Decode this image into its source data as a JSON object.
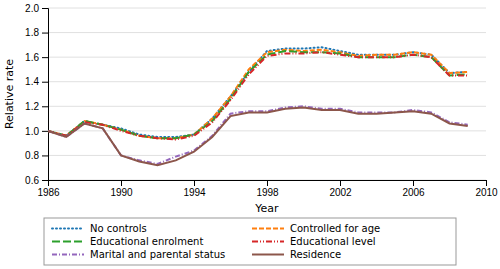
{
  "chart_data": {
    "type": "line",
    "x": [
      1986,
      1987,
      1988,
      1989,
      1990,
      1991,
      1992,
      1993,
      1994,
      1995,
      1996,
      1997,
      1998,
      1999,
      2000,
      2001,
      2002,
      2003,
      2004,
      2005,
      2006,
      2007,
      2008,
      2009
    ],
    "series": [
      {
        "name": "No controls",
        "line_style": "dotted",
        "values": [
          1.0,
          0.96,
          1.08,
          1.05,
          1.02,
          0.97,
          0.95,
          0.95,
          0.97,
          1.1,
          1.28,
          1.48,
          1.65,
          1.67,
          1.67,
          1.68,
          1.65,
          1.62,
          1.62,
          1.62,
          1.64,
          1.62,
          1.47,
          1.48
        ]
      },
      {
        "name": "Controlled for age",
        "line_style": "dashed",
        "values": [
          1.0,
          0.96,
          1.08,
          1.05,
          1.01,
          0.96,
          0.94,
          0.94,
          0.97,
          1.1,
          1.28,
          1.5,
          1.64,
          1.66,
          1.65,
          1.66,
          1.64,
          1.61,
          1.62,
          1.62,
          1.64,
          1.62,
          1.47,
          1.48
        ]
      },
      {
        "name": "Educational enrolment",
        "line_style": "longdashed",
        "values": [
          1.0,
          0.96,
          1.08,
          1.05,
          1.01,
          0.96,
          0.94,
          0.94,
          0.97,
          1.08,
          1.26,
          1.48,
          1.62,
          1.65,
          1.64,
          1.64,
          1.63,
          1.6,
          1.6,
          1.6,
          1.62,
          1.6,
          1.45,
          1.46
        ]
      },
      {
        "name": "Educational level",
        "line_style": "dashdotdot",
        "values": [
          1.0,
          0.96,
          1.07,
          1.05,
          1.0,
          0.96,
          0.94,
          0.93,
          0.96,
          1.07,
          1.25,
          1.46,
          1.61,
          1.63,
          1.63,
          1.64,
          1.62,
          1.6,
          1.6,
          1.6,
          1.62,
          1.6,
          1.45,
          1.45
        ]
      },
      {
        "name": "Marital and parental status",
        "line_style": "dashdot",
        "values": [
          1.0,
          0.95,
          1.06,
          1.02,
          0.8,
          0.76,
          0.73,
          0.79,
          0.84,
          0.96,
          1.14,
          1.16,
          1.16,
          1.19,
          1.2,
          1.18,
          1.18,
          1.15,
          1.15,
          1.15,
          1.17,
          1.15,
          1.07,
          1.05
        ]
      },
      {
        "name": "Residence",
        "line_style": "solid",
        "values": [
          1.0,
          0.95,
          1.06,
          1.02,
          0.8,
          0.75,
          0.72,
          0.76,
          0.83,
          0.95,
          1.12,
          1.15,
          1.15,
          1.18,
          1.19,
          1.17,
          1.17,
          1.14,
          1.14,
          1.15,
          1.16,
          1.14,
          1.06,
          1.04
        ]
      }
    ],
    "xlabel": "Year",
    "ylabel": "Relative rate",
    "xlim": [
      1986,
      2010
    ],
    "xticks": [
      1986,
      1990,
      1994,
      1998,
      2002,
      2006,
      2010
    ],
    "ylim": [
      0.6,
      2.0
    ],
    "yticks": [
      0.6,
      0.8,
      {
        "value": 1,
        "label": "1.0"
      },
      1.2,
      1.4,
      1.6,
      1.8,
      {
        "value": 2,
        "label": "2.0"
      }
    ],
    "grid": true,
    "legend": "bottom"
  }
}
